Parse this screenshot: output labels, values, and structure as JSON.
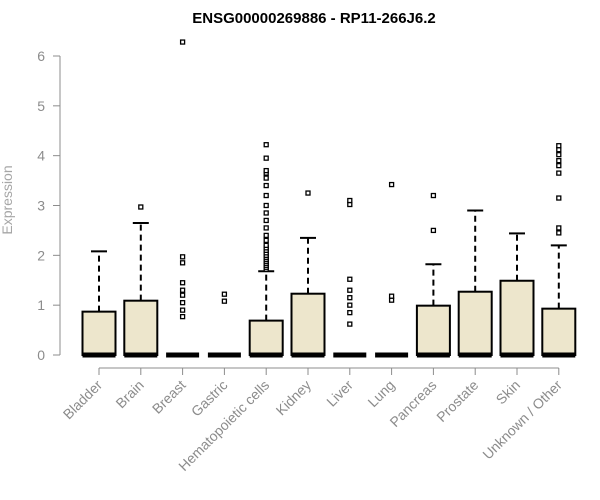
{
  "chart_data": {
    "type": "boxplot",
    "title": "ENSG00000269886 - RP11-266J6.2",
    "xlabel": "",
    "ylabel": "Expression",
    "ylim": [
      0,
      6.2
    ],
    "yticks": [
      0,
      1,
      2,
      3,
      4,
      5,
      6
    ],
    "colors": {
      "box_fill": "#ede6cc",
      "box_stroke": "#000000",
      "axis": "#8c8c8c"
    },
    "categories": [
      "Bladder",
      "Brain",
      "Breast",
      "Gastric",
      "Hematopoietic cells",
      "Kidney",
      "Liver",
      "Lung",
      "Pancreas",
      "Prostate",
      "Skin",
      "Unknown / Other"
    ],
    "boxes": [
      {
        "category": "Bladder",
        "min": 0,
        "q1": 0,
        "median": 0,
        "q3": 0.87,
        "max": 2.08,
        "outliers": []
      },
      {
        "category": "Brain",
        "min": 0,
        "q1": 0,
        "median": 0,
        "q3": 1.09,
        "max": 2.65,
        "outliers": [
          2.97
        ]
      },
      {
        "category": "Breast",
        "min": 0,
        "q1": 0,
        "median": 0,
        "q3": 0,
        "max": 0,
        "outliers": [
          0.77,
          0.9,
          1.05,
          1.2,
          1.3,
          1.45,
          1.85,
          1.97,
          6.28
        ]
      },
      {
        "category": "Gastric",
        "min": 0,
        "q1": 0,
        "median": 0,
        "q3": 0,
        "max": 0,
        "outliers": [
          1.08,
          1.22
        ]
      },
      {
        "category": "Hematopoietic cells",
        "min": 0,
        "q1": 0,
        "median": 0,
        "q3": 0.69,
        "max": 1.68,
        "outliers": [
          1.72,
          1.76,
          1.8,
          1.84,
          1.88,
          1.92,
          1.96,
          2.0,
          2.05,
          2.1,
          2.15,
          2.2,
          2.3,
          2.4,
          2.55,
          2.7,
          2.85,
          3.0,
          3.2,
          3.4,
          3.55,
          3.65,
          3.7,
          3.95,
          4.22
        ]
      },
      {
        "category": "Kidney",
        "min": 0,
        "q1": 0,
        "median": 0,
        "q3": 1.23,
        "max": 2.35,
        "outliers": [
          3.25
        ]
      },
      {
        "category": "Liver",
        "min": 0,
        "q1": 0,
        "median": 0,
        "q3": 0,
        "max": 0,
        "outliers": [
          0.62,
          0.85,
          1.0,
          1.15,
          1.3,
          1.52,
          3.02,
          3.1
        ]
      },
      {
        "category": "Lung",
        "min": 0,
        "q1": 0,
        "median": 0,
        "q3": 0,
        "max": 0,
        "outliers": [
          1.1,
          1.18,
          3.42
        ]
      },
      {
        "category": "Pancreas",
        "min": 0,
        "q1": 0,
        "median": 0,
        "q3": 0.99,
        "max": 1.82,
        "outliers": [
          2.5,
          3.2
        ]
      },
      {
        "category": "Prostate",
        "min": 0,
        "q1": 0,
        "median": 0,
        "q3": 1.27,
        "max": 2.9,
        "outliers": []
      },
      {
        "category": "Skin",
        "min": 0,
        "q1": 0,
        "median": 0,
        "q3": 1.49,
        "max": 2.44,
        "outliers": []
      },
      {
        "category": "Unknown / Other",
        "min": 0,
        "q1": 0,
        "median": 0,
        "q3": 0.93,
        "max": 2.2,
        "outliers": [
          2.45,
          2.55,
          3.15,
          3.65,
          3.8,
          3.9,
          4.02,
          4.12,
          4.2
        ]
      }
    ]
  }
}
